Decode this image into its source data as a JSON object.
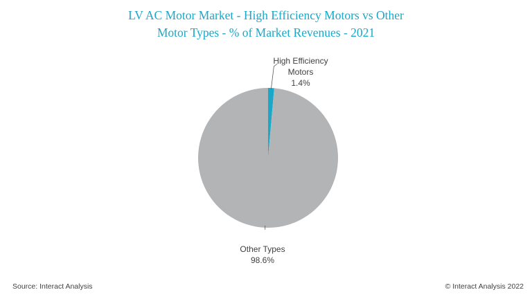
{
  "chart_data": {
    "type": "pie",
    "title_lines": [
      "LV AC Motor Market - High Efficiency Motors vs Other",
      "Motor Types - % of Market Revenues - 2021"
    ],
    "slices": [
      {
        "label_lines": [
          "High Efficiency",
          "Motors"
        ],
        "value": 1.4,
        "value_label": "1.4%",
        "color": "#1aa7c8"
      },
      {
        "label_lines": [
          "Other Types"
        ],
        "value": 98.6,
        "value_label": "98.6%",
        "color": "#b3b4b6"
      }
    ],
    "start_angle_deg": 0,
    "direction": "clockwise",
    "legend": "none"
  },
  "footer": {
    "source": "Source: Interact Analysis",
    "copyright": "© Interact Analysis 2022"
  }
}
